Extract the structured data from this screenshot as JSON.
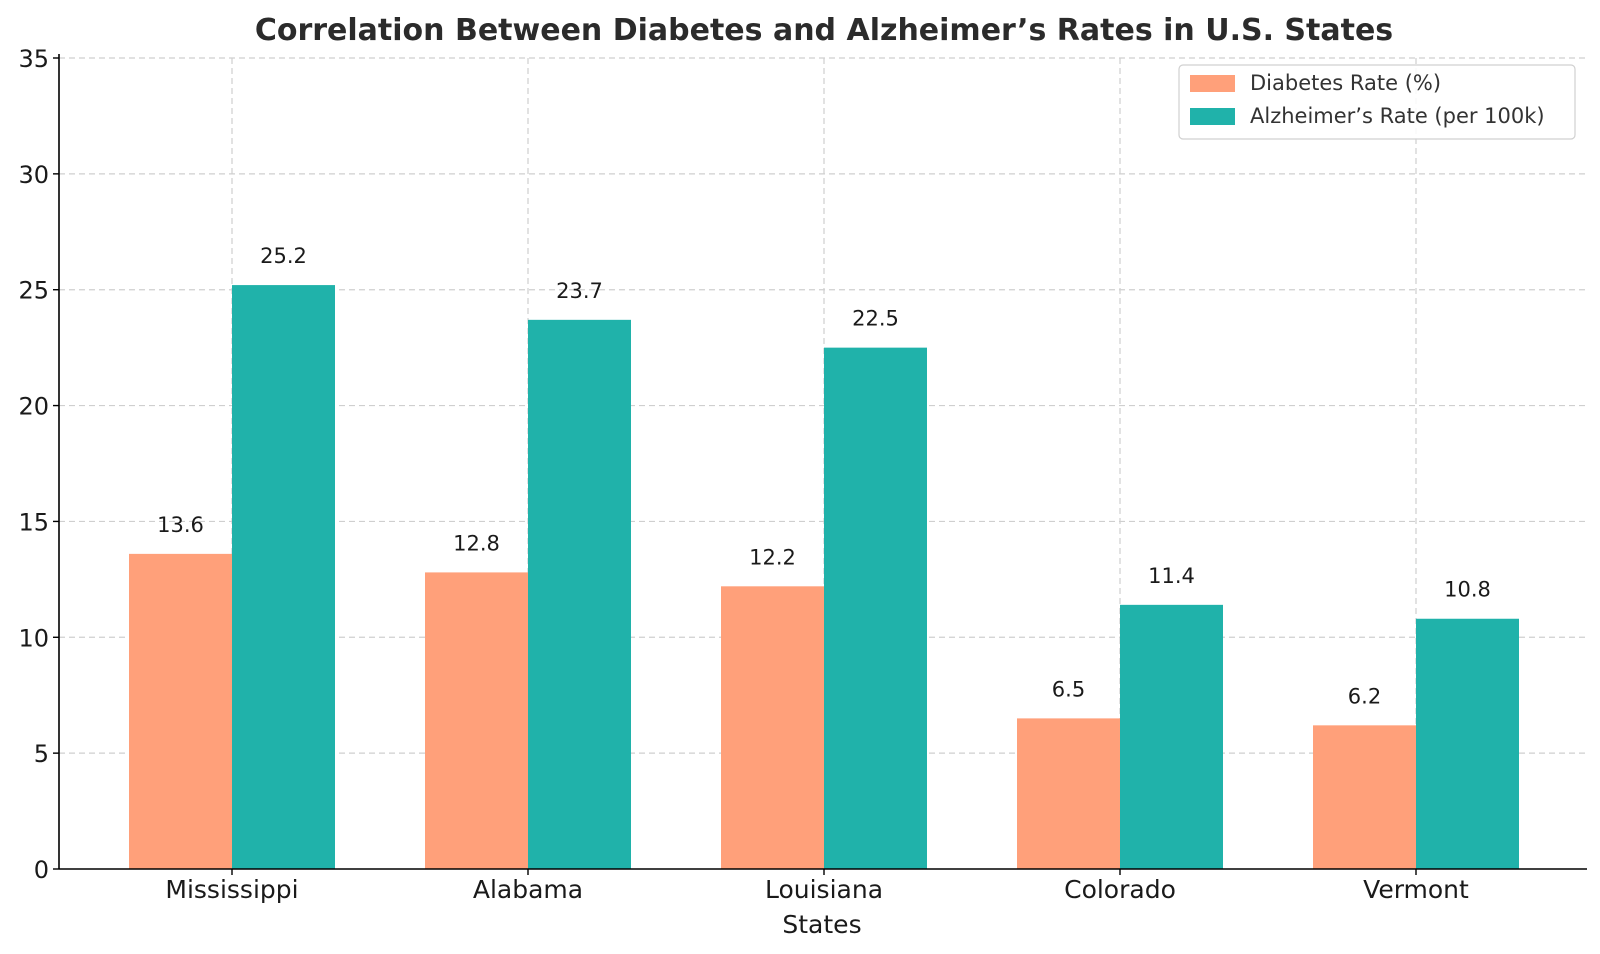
{
  "chart_data": {
    "type": "bar",
    "title": "Correlation Between Diabetes and Alzheimer’s Rates in U.S. States",
    "xlabel": "States",
    "ylabel": "",
    "categories": [
      "Mississippi",
      "Alabama",
      "Louisiana",
      "Colorado",
      "Vermont"
    ],
    "series": [
      {
        "name": "Diabetes Rate (%)",
        "color": "#FFA07A",
        "values": [
          13.6,
          12.8,
          12.2,
          6.5,
          6.2
        ]
      },
      {
        "name": "Alzheimer’s Rate (per 100k)",
        "color": "#20B2AA",
        "values": [
          25.2,
          23.7,
          22.5,
          11.4,
          10.8
        ]
      }
    ],
    "ylim": [
      0,
      35
    ],
    "yticks": [
      0,
      5,
      10,
      15,
      20,
      25,
      30,
      35
    ],
    "grid": true,
    "legend_position": "top-right",
    "data_labels": true
  }
}
